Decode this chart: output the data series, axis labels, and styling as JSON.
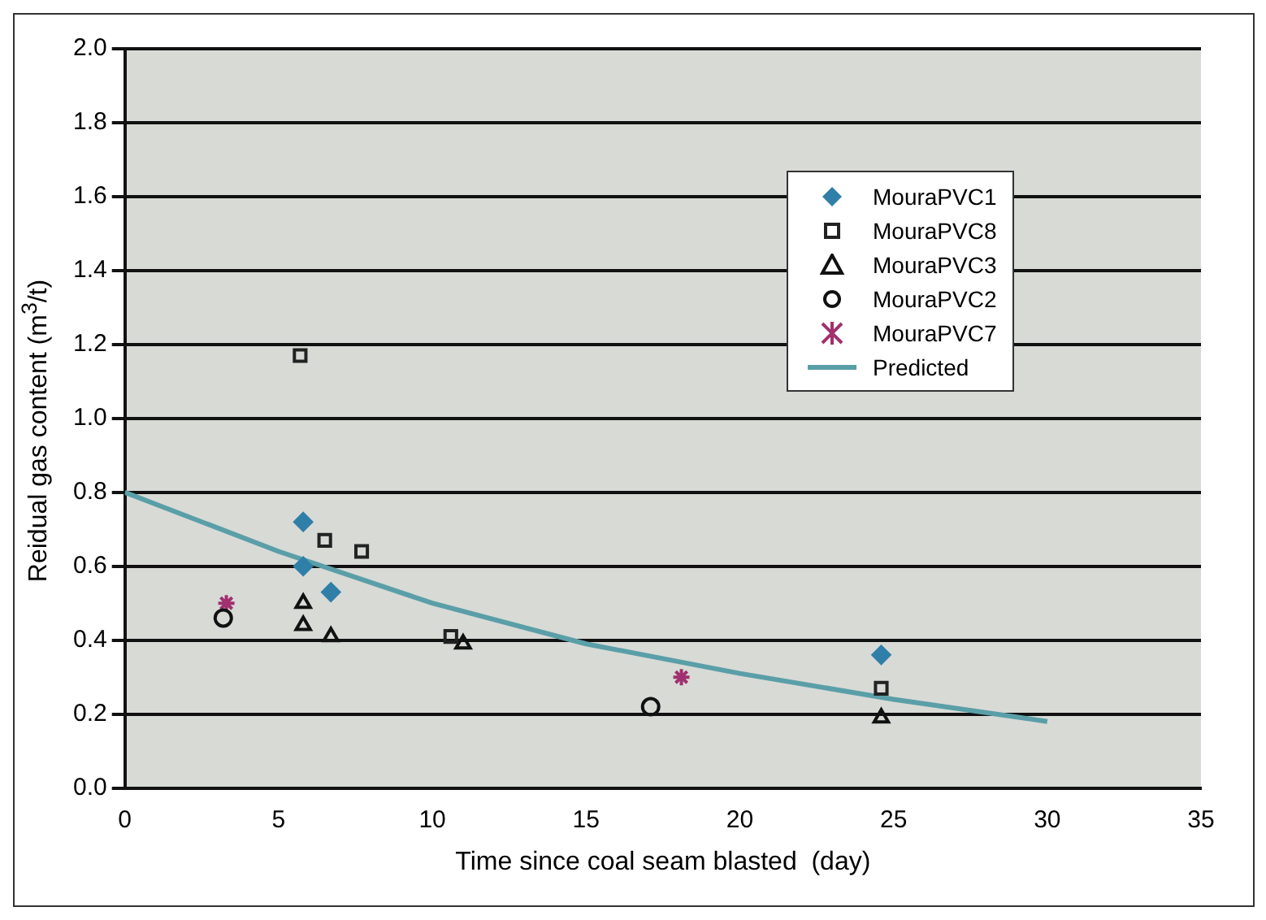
{
  "chart_data": {
    "type": "scatter",
    "xlabel": "Time since coal seam blasted  (day)",
    "ylabel": "Reidual gas content (m$^{3}$/t)",
    "xlim": [
      0,
      35
    ],
    "xticks": [
      0,
      5,
      10,
      15,
      20,
      25,
      30,
      35
    ],
    "ylim": [
      0,
      2.0
    ],
    "yticks": [
      {
        "value": 0,
        "label": "0.0"
      },
      {
        "value": 0.2,
        "label": "0.2"
      },
      {
        "value": 0.4,
        "label": "0.4"
      },
      {
        "value": 0.6,
        "label": "0.6"
      },
      {
        "value": 0.8,
        "label": "0.8"
      },
      {
        "value": 1.0,
        "label": "1.0"
      },
      {
        "value": 1.2,
        "label": "1.2"
      },
      {
        "value": 1.4,
        "label": "1.4"
      },
      {
        "value": 1.6,
        "label": "1.6"
      },
      {
        "value": 1.8,
        "label": "1.8"
      },
      {
        "value": 2.0,
        "label": "2.0"
      }
    ],
    "grid": "y",
    "legend": "top right",
    "series": [
      {
        "name": "MouraPVC1",
        "color": "#2f7fa8",
        "marker": "diamond",
        "x": [
          5.8,
          5.8,
          6.7,
          24.6
        ],
        "values": [
          0.72,
          0.6,
          0.53,
          0.36
        ]
      },
      {
        "name": "MouraPVC8",
        "color": "#222222",
        "marker": "square",
        "x": [
          5.7,
          6.5,
          7.7,
          10.6,
          24.6
        ],
        "values": [
          1.17,
          0.67,
          0.64,
          0.41,
          0.27
        ]
      },
      {
        "name": "MouraPVC3",
        "color": "#111111",
        "marker": "triangle",
        "x": [
          5.8,
          5.8,
          6.7,
          11.0,
          24.6
        ],
        "values": [
          0.5,
          0.44,
          0.41,
          0.39,
          0.19
        ]
      },
      {
        "name": "MouraPVC2",
        "color": "#111111",
        "marker": "circle",
        "x": [
          3.2,
          10.5,
          17.1
        ],
        "values": [
          0.46,
          null,
          0.22
        ]
      },
      {
        "name": "MouraPVC7",
        "color": "#a0306e",
        "marker": "cross",
        "x": [
          3.3,
          18.1
        ],
        "values": [
          0.5,
          0.3
        ]
      },
      {
        "name": "Predicted",
        "type": "line",
        "color": "#5a9fa8",
        "marker": "none",
        "x": [
          0,
          5,
          10,
          15,
          20,
          25,
          30
        ],
        "values": [
          0.8,
          0.64,
          0.5,
          0.39,
          0.31,
          0.24,
          0.18
        ]
      }
    ]
  }
}
